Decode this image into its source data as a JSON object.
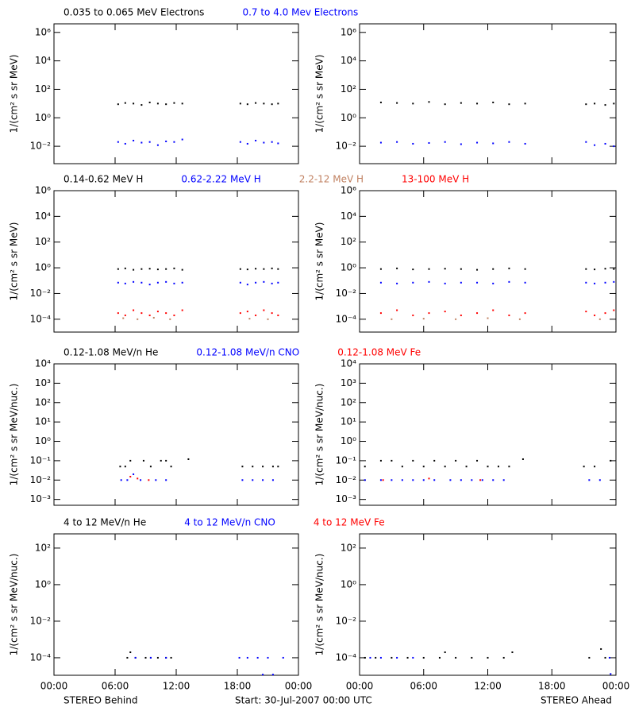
{
  "chart_data": [
    {
      "type": "scatter",
      "log_y": true,
      "ylabel": "1/(cm² s sr MeV)",
      "xlim": [
        0,
        24
      ],
      "xticks": [
        0,
        6,
        12,
        18,
        24
      ],
      "ylim": [
        0.0006,
        4000000
      ],
      "yticks": [
        {
          "value": 0.01,
          "label": "10⁻²"
        },
        {
          "value": 1,
          "label": "10⁰"
        },
        {
          "value": 100,
          "label": "10²"
        },
        {
          "value": 10000,
          "label": "10⁴"
        },
        {
          "value": 1000000,
          "label": "10⁶"
        }
      ],
      "series": [
        {
          "name": "0.035 to 0.065 MeV Electrons",
          "color": "#000000",
          "x": [
            6.3,
            7,
            7.8,
            8.6,
            9.4,
            10.2,
            11,
            11.8,
            12.6,
            18.3,
            19,
            19.8,
            20.6,
            21.4,
            22
          ],
          "values": [
            9,
            11,
            10,
            8,
            12,
            10,
            9,
            11,
            10,
            10,
            9,
            11,
            10,
            9,
            10
          ]
        },
        {
          "name": "0.7 to 4.0 Mev Electrons",
          "color": "#0000ff",
          "x": [
            6.3,
            7,
            7.8,
            8.6,
            9.4,
            10.2,
            11,
            11.8,
            12.6,
            18.3,
            19,
            19.8,
            20.6,
            21.4,
            22
          ],
          "values": [
            0.02,
            0.015,
            0.025,
            0.018,
            0.02,
            0.012,
            0.022,
            0.02,
            0.03,
            0.02,
            0.015,
            0.025,
            0.018,
            0.02,
            0.016
          ]
        }
      ]
    },
    {
      "type": "scatter",
      "log_y": true,
      "ylabel": "1/(cm² s sr MeV)",
      "xlim": [
        0,
        24
      ],
      "xticks": [
        0,
        6,
        12,
        18,
        24
      ],
      "ylim": [
        0.0006,
        4000000
      ],
      "yticks": [
        {
          "value": 0.01,
          "label": "10⁻²"
        },
        {
          "value": 1,
          "label": "10⁰"
        },
        {
          "value": 100,
          "label": "10²"
        },
        {
          "value": 10000,
          "label": "10⁴"
        },
        {
          "value": 1000000,
          "label": "10⁶"
        }
      ],
      "series": [
        {
          "color": "#000000",
          "x": [
            2,
            3.5,
            5,
            6.5,
            8,
            9.5,
            11,
            12.5,
            14,
            15.5,
            21.2,
            22,
            23,
            23.8
          ],
          "values": [
            12,
            11,
            10,
            13,
            9,
            11,
            10,
            12,
            9,
            10,
            9,
            10,
            8,
            10
          ]
        },
        {
          "color": "#0000ff",
          "x": [
            2,
            3.5,
            5,
            6.5,
            8,
            9.5,
            11,
            12.5,
            14,
            15.5,
            21.2,
            22,
            23,
            23.8
          ],
          "values": [
            0.018,
            0.02,
            0.015,
            0.017,
            0.02,
            0.014,
            0.018,
            0.016,
            0.02,
            0.015,
            0.02,
            0.012,
            0.015,
            0.01
          ]
        }
      ]
    },
    {
      "type": "scatter",
      "log_y": true,
      "ylabel": "1/(cm² s sr MeV)",
      "xlim": [
        0,
        24
      ],
      "xticks": [
        0,
        6,
        12,
        18,
        24
      ],
      "ylim": [
        1e-05,
        1000000
      ],
      "yticks": [
        {
          "value": 0.0001,
          "label": "10⁻⁴"
        },
        {
          "value": 0.01,
          "label": "10⁻²"
        },
        {
          "value": 1,
          "label": "10⁰"
        },
        {
          "value": 100,
          "label": "10²"
        },
        {
          "value": 10000,
          "label": "10⁴"
        },
        {
          "value": 1000000,
          "label": "10⁶"
        }
      ],
      "series": [
        {
          "name": "0.14-0.62 MeV H",
          "color": "#000000",
          "x": [
            6.3,
            7,
            7.8,
            8.6,
            9.4,
            10.2,
            11,
            11.8,
            12.6,
            18.3,
            19,
            19.8,
            20.6,
            21.4,
            22
          ],
          "values": [
            0.8,
            0.9,
            0.7,
            0.8,
            0.85,
            0.75,
            0.8,
            0.9,
            0.7,
            0.8,
            0.75,
            0.85,
            0.8,
            0.9,
            0.8
          ]
        },
        {
          "name": "0.62-2.22 MeV H",
          "color": "#0000ff",
          "x": [
            6.3,
            7,
            7.8,
            8.6,
            9.4,
            10.2,
            11,
            11.8,
            12.6,
            18.3,
            19,
            19.8,
            20.6,
            21.4,
            22
          ],
          "values": [
            0.07,
            0.06,
            0.08,
            0.07,
            0.05,
            0.07,
            0.08,
            0.06,
            0.07,
            0.07,
            0.05,
            0.07,
            0.08,
            0.06,
            0.07
          ]
        },
        {
          "name": "2.2-12 MeV H",
          "color": "#c08060",
          "x": [
            6.8,
            8.2,
            9.8,
            11.4,
            19.2,
            21
          ],
          "values": [
            0.00012,
            0.0001,
            0.00013,
            0.0001,
            0.00011,
            0.0001
          ]
        },
        {
          "name": "13-100 MeV H",
          "color": "#ff0000",
          "x": [
            6.3,
            7,
            7.8,
            8.6,
            9.4,
            10.2,
            11,
            11.8,
            12.6,
            18.3,
            19,
            19.8,
            20.6,
            21.4,
            22
          ],
          "values": [
            0.0003,
            0.0002,
            0.0005,
            0.0003,
            0.0002,
            0.0004,
            0.0003,
            0.0002,
            0.0005,
            0.0003,
            0.0004,
            0.0002,
            0.0005,
            0.0003,
            0.0002
          ]
        }
      ]
    },
    {
      "type": "scatter",
      "log_y": true,
      "ylabel": "1/(cm² s sr MeV)",
      "xlim": [
        0,
        24
      ],
      "xticks": [
        0,
        6,
        12,
        18,
        24
      ],
      "ylim": [
        1e-05,
        1000000
      ],
      "yticks": [
        {
          "value": 0.0001,
          "label": "10⁻⁴"
        },
        {
          "value": 0.01,
          "label": "10⁻²"
        },
        {
          "value": 1,
          "label": "10⁰"
        },
        {
          "value": 100,
          "label": "10²"
        },
        {
          "value": 10000,
          "label": "10⁴"
        },
        {
          "value": 1000000,
          "label": "10⁶"
        }
      ],
      "series": [
        {
          "color": "#000000",
          "x": [
            2,
            3.5,
            5,
            6.5,
            8,
            9.5,
            11,
            12.5,
            14,
            15.5,
            21.2,
            22,
            23,
            23.8
          ],
          "values": [
            0.8,
            0.9,
            0.75,
            0.8,
            0.85,
            0.8,
            0.7,
            0.8,
            0.9,
            0.8,
            0.8,
            0.75,
            0.85,
            0.8
          ]
        },
        {
          "color": "#0000ff",
          "x": [
            2,
            3.5,
            5,
            6.5,
            8,
            9.5,
            11,
            12.5,
            14,
            15.5,
            21.2,
            22,
            23,
            23.8
          ],
          "values": [
            0.07,
            0.06,
            0.07,
            0.08,
            0.06,
            0.07,
            0.07,
            0.06,
            0.08,
            0.07,
            0.07,
            0.06,
            0.07,
            0.08
          ]
        },
        {
          "color": "#c08060",
          "x": [
            3,
            6,
            9,
            12,
            15,
            22.5
          ],
          "values": [
            0.0001,
            0.00011,
            0.0001,
            0.00012,
            0.0001,
            0.0001
          ]
        },
        {
          "color": "#ff0000",
          "x": [
            2,
            3.5,
            5,
            6.5,
            8,
            9.5,
            11,
            12.5,
            14,
            15.5,
            21.2,
            22,
            23,
            23.8
          ],
          "values": [
            0.0003,
            0.0005,
            0.0002,
            0.0003,
            0.0004,
            0.0002,
            0.0003,
            0.0005,
            0.0002,
            0.0003,
            0.0004,
            0.0002,
            0.0003,
            0.0005
          ]
        }
      ]
    },
    {
      "type": "scatter",
      "log_y": true,
      "ylabel": "1/(cm² s sr MeV/nuc.)",
      "xlim": [
        0,
        24
      ],
      "xticks": [
        0,
        6,
        12,
        18,
        24
      ],
      "ylim": [
        0.0005,
        10000
      ],
      "yticks": [
        {
          "value": 0.001,
          "label": "10⁻³"
        },
        {
          "value": 0.01,
          "label": "10⁻²"
        },
        {
          "value": 0.1,
          "label": "10⁻¹"
        },
        {
          "value": 1,
          "label": "10⁰"
        },
        {
          "value": 10,
          "label": "10¹"
        },
        {
          "value": 100,
          "label": "10²"
        },
        {
          "value": 1000,
          "label": "10³"
        },
        {
          "value": 10000,
          "label": "10⁴"
        }
      ],
      "series": [
        {
          "name": "0.12-1.08 MeV/n He",
          "color": "#000000",
          "x": [
            6.5,
            7,
            7.5,
            8.8,
            9.5,
            10.5,
            11,
            11.5,
            13.2,
            18.5,
            19.5,
            20.5,
            21.5,
            22
          ],
          "values": [
            0.05,
            0.05,
            0.1,
            0.1,
            0.05,
            0.1,
            0.1,
            0.05,
            0.12,
            0.05,
            0.05,
            0.05,
            0.05,
            0.05
          ]
        },
        {
          "name": "0.12-1.08 MeV/n CNO",
          "color": "#0000ff",
          "x": [
            6.6,
            7.2,
            7.8,
            8.5,
            10,
            11,
            18.5,
            19.5,
            20.5,
            21.5
          ],
          "values": [
            0.01,
            0.01,
            0.02,
            0.01,
            0.01,
            0.01,
            0.01,
            0.01,
            0.01,
            0.01
          ]
        },
        {
          "name": "0.12-1.08 MeV Fe",
          "color": "#ff0000",
          "x": [
            7.5,
            8.2,
            9.3
          ],
          "values": [
            0.015,
            0.012,
            0.01
          ]
        }
      ]
    },
    {
      "type": "scatter",
      "log_y": true,
      "ylabel": "1/(cm² s sr MeV/nuc.)",
      "xlim": [
        0,
        24
      ],
      "xticks": [
        0,
        6,
        12,
        18,
        24
      ],
      "ylim": [
        0.0005,
        10000
      ],
      "yticks": [
        {
          "value": 0.001,
          "label": "10⁻³"
        },
        {
          "value": 0.01,
          "label": "10⁻²"
        },
        {
          "value": 0.1,
          "label": "10⁻¹"
        },
        {
          "value": 1,
          "label": "10⁰"
        },
        {
          "value": 10,
          "label": "10¹"
        },
        {
          "value": 100,
          "label": "10²"
        },
        {
          "value": 1000,
          "label": "10³"
        },
        {
          "value": 10000,
          "label": "10⁴"
        }
      ],
      "series": [
        {
          "color": "#000000",
          "x": [
            0.5,
            2,
            3,
            4,
            5,
            6,
            7,
            8,
            9,
            10,
            11,
            12,
            13,
            14,
            15.3,
            21,
            22,
            23.5
          ],
          "values": [
            0.05,
            0.1,
            0.1,
            0.05,
            0.1,
            0.05,
            0.1,
            0.05,
            0.1,
            0.05,
            0.1,
            0.05,
            0.05,
            0.05,
            0.12,
            0.05,
            0.05,
            0.1
          ]
        },
        {
          "color": "#0000ff",
          "x": [
            0.5,
            2,
            3,
            4,
            5,
            6,
            7,
            8.5,
            9.5,
            10.5,
            11.5,
            12.5,
            13.5,
            21.5,
            22.5
          ],
          "values": [
            0.01,
            0.01,
            0.01,
            0.01,
            0.01,
            0.01,
            0.01,
            0.01,
            0.01,
            0.01,
            0.01,
            0.01,
            0.01,
            0.01,
            0.01
          ]
        },
        {
          "color": "#ff0000",
          "x": [
            2.2,
            6.5,
            11.3
          ],
          "values": [
            0.01,
            0.012,
            0.01
          ]
        }
      ]
    },
    {
      "type": "scatter",
      "log_y": true,
      "ylabel": "1/(cm² s sr MeV/nuc.)",
      "xlim": [
        0,
        24
      ],
      "ylim": [
        1.1e-05,
        600
      ],
      "xticks": [
        {
          "value": 0,
          "label": "00:00"
        },
        {
          "value": 6,
          "label": "06:00"
        },
        {
          "value": 12,
          "label": "12:00"
        },
        {
          "value": 18,
          "label": "18:00"
        },
        {
          "value": 24,
          "label": "00:00"
        }
      ],
      "yticks": [
        {
          "value": 0.0001,
          "label": "10⁻⁴"
        },
        {
          "value": 0.01,
          "label": "10⁻²"
        },
        {
          "value": 1,
          "label": "10⁰"
        },
        {
          "value": 100,
          "label": "10²"
        }
      ],
      "series": [
        {
          "name": "4 to 12 MeV/n He",
          "color": "#000000",
          "x": [
            7.2,
            7.5,
            8,
            9,
            9.5,
            10.2,
            11,
            11.5
          ],
          "values": [
            0.0001,
            0.0002,
            0.0001,
            0.0001,
            0.0001,
            0.0001,
            0.0001,
            0.0001
          ]
        },
        {
          "name": "4 to 12 MeV/n CNO",
          "color": "#0000ff",
          "x": [
            8,
            9.5,
            11,
            18.2,
            19,
            20,
            20.5,
            21,
            21.5,
            22.5
          ],
          "values": [
            0.0001,
            0.0001,
            0.0001,
            0.0001,
            0.0001,
            0.0001,
            1.2e-05,
            0.0001,
            1.2e-05,
            0.0001
          ]
        },
        {
          "name": "4 to 12 MeV Fe",
          "color": "#ff0000",
          "x": [],
          "values": []
        }
      ]
    },
    {
      "type": "scatter",
      "log_y": true,
      "ylabel": "1/(cm² s sr MeV/nuc.)",
      "xlim": [
        0,
        24
      ],
      "ylim": [
        1.1e-05,
        600
      ],
      "xticks": [
        {
          "value": 0,
          "label": "00:00"
        },
        {
          "value": 6,
          "label": "06:00"
        },
        {
          "value": 12,
          "label": "12:00"
        },
        {
          "value": 18,
          "label": "18:00"
        },
        {
          "value": 24,
          "label": "00:00"
        }
      ],
      "yticks": [
        {
          "value": 0.0001,
          "label": "10⁻⁴"
        },
        {
          "value": 0.01,
          "label": "10⁻²"
        },
        {
          "value": 1,
          "label": "10⁰"
        },
        {
          "value": 100,
          "label": "10²"
        }
      ],
      "series": [
        {
          "color": "#000000",
          "x": [
            0.5,
            1.5,
            3,
            4.5,
            6,
            7.5,
            8,
            9,
            10.5,
            12,
            13.5,
            14.3,
            21.5,
            22.6,
            23
          ],
          "values": [
            0.0001,
            0.0001,
            0.0001,
            0.0001,
            0.0001,
            0.0001,
            0.0002,
            0.0001,
            0.0001,
            0.0001,
            0.0001,
            0.0002,
            0.0001,
            0.0003,
            0.0001
          ]
        },
        {
          "color": "#0000ff",
          "x": [
            1,
            2,
            3.5,
            5,
            23.4,
            23.5
          ],
          "values": [
            0.0001,
            0.0001,
            0.0001,
            0.0001,
            0.0001,
            1.3e-05
          ]
        },
        {
          "color": "#ff0000",
          "x": [],
          "values": []
        }
      ]
    }
  ],
  "footer": {
    "left": "STEREO Behind",
    "center": "Start: 30-Jul-2007 00:00 UTC",
    "right": "STEREO Ahead"
  }
}
